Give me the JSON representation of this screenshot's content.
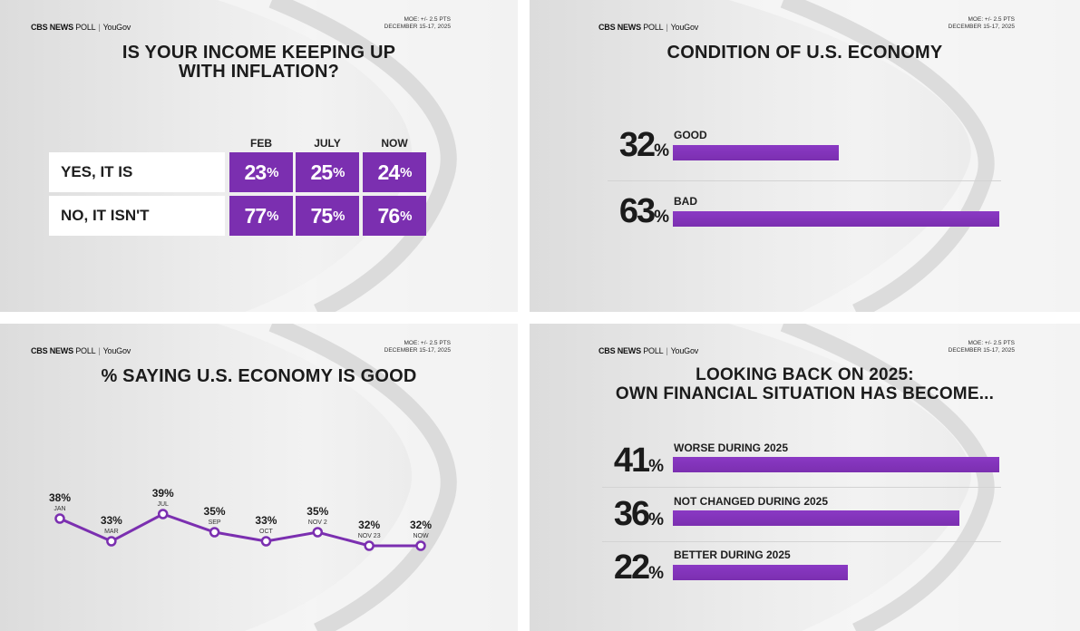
{
  "header": {
    "brand": "CBS NEWS",
    "brand_poll": "POLL",
    "partner": "YouGov",
    "moe": "MOE: +/- 2.5 PTS",
    "dates": "DECEMBER 15-17, 2025"
  },
  "colors": {
    "accent": "#7b2fb0",
    "text": "#1b1b1b",
    "background": "#e8e8e8"
  },
  "chart_data": [
    {
      "type": "table",
      "title_line1": "IS YOUR INCOME KEEPING UP",
      "title_line2": "WITH INFLATION?",
      "columns": [
        "FEB",
        "JULY",
        "NOW"
      ],
      "rows": [
        {
          "label": "YES, IT IS",
          "values": [
            23,
            25,
            24
          ]
        },
        {
          "label": "NO, IT ISN'T",
          "values": [
            77,
            75,
            76
          ]
        }
      ],
      "unit": "%"
    },
    {
      "type": "bar",
      "title": "CONDITION OF U.S. ECONOMY",
      "categories": [
        "GOOD",
        "BAD"
      ],
      "values": [
        32,
        63
      ],
      "unit": "%",
      "xlim": [
        0,
        63
      ]
    },
    {
      "type": "line",
      "title": "% SAYING U.S. ECONOMY IS GOOD",
      "categories": [
        "JAN",
        "MAR",
        "JUL",
        "SEP",
        "OCT",
        "NOV 2",
        "NOV 23",
        "NOW"
      ],
      "values": [
        38,
        33,
        39,
        35,
        33,
        35,
        32,
        32
      ],
      "unit": "%",
      "ylim": [
        25,
        45
      ]
    },
    {
      "type": "bar",
      "title_line1": "LOOKING BACK ON 2025:",
      "title_line2": "OWN FINANCIAL SITUATION HAS BECOME...",
      "categories": [
        "WORSE DURING 2025",
        "NOT CHANGED DURING 2025",
        "BETTER DURING 2025"
      ],
      "values": [
        41,
        36,
        22
      ],
      "unit": "%",
      "xlim": [
        0,
        41
      ]
    }
  ]
}
